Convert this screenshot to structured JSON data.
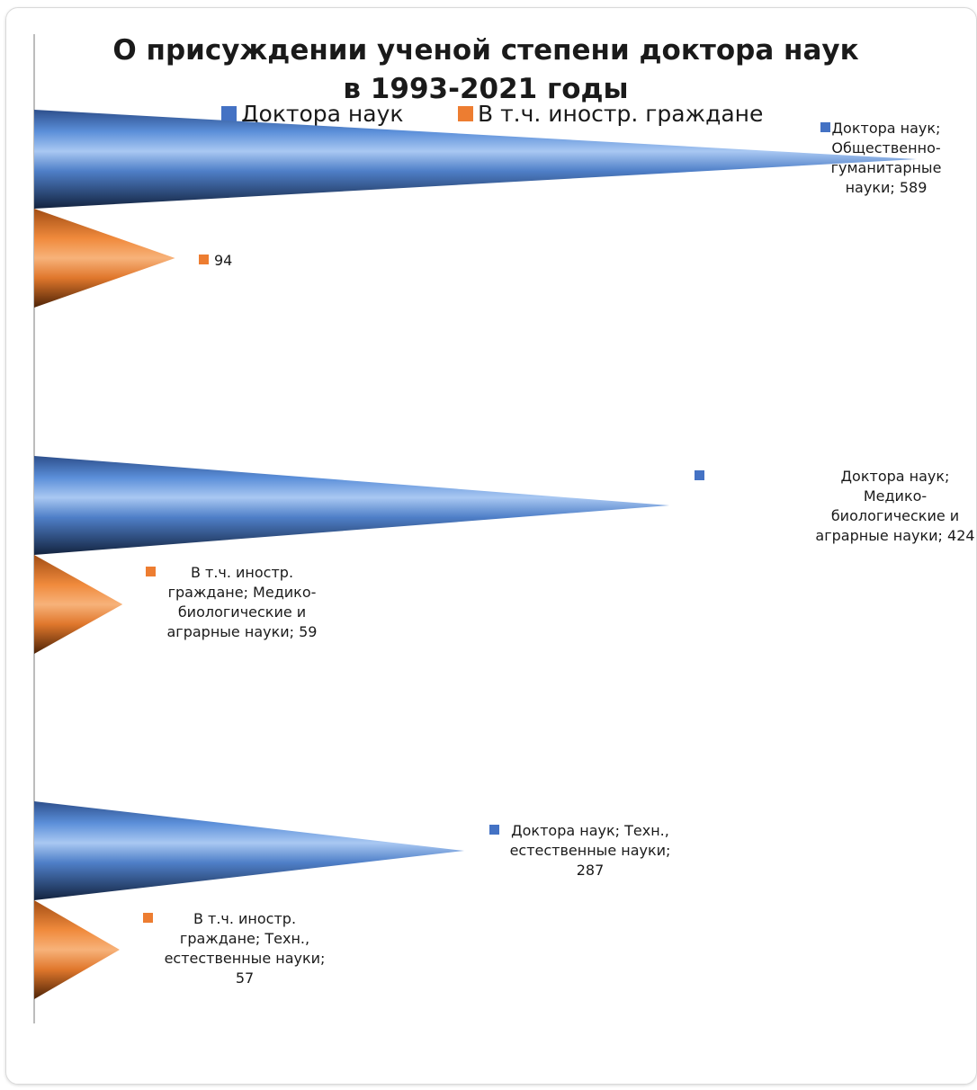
{
  "chart_data": {
    "type": "bar",
    "orientation": "horizontal",
    "style": "cone",
    "title_lines": [
      "О присуждении ученой степени доктора наук",
      "в  1993-2021 годы"
    ],
    "categories": [
      "Общественно-гуманитарные науки",
      "Медико-биологические и аграрные науки",
      "Техн., естественные науки"
    ],
    "series": [
      {
        "name": "Доктора наук",
        "color": "#4472c4",
        "values": [
          589,
          424,
          287
        ],
        "labels": [
          [
            "Доктора наук;",
            "Общественно-",
            "гуманитарные",
            "науки; 589"
          ],
          [
            "Доктора наук;",
            "Медико-",
            "биологические и",
            "аграрные науки; 424"
          ],
          [
            "Доктора наук; Техн.,",
            "естественные науки;",
            "287"
          ]
        ]
      },
      {
        "name": "В т.ч. иностр. граждане",
        "color": "#ed7d31",
        "values": [
          94,
          59,
          57
        ],
        "labels": [
          [
            "94"
          ],
          [
            "В т.ч. иностр.",
            "граждане; Медико-",
            "биологические и",
            "аграрные науки; 59"
          ],
          [
            "В т.ч. иностр.",
            "граждане; Техн.,",
            "естественные науки;",
            "57"
          ]
        ]
      }
    ],
    "xlim": [
      0,
      600
    ],
    "grid": false,
    "legend_position": "top"
  }
}
